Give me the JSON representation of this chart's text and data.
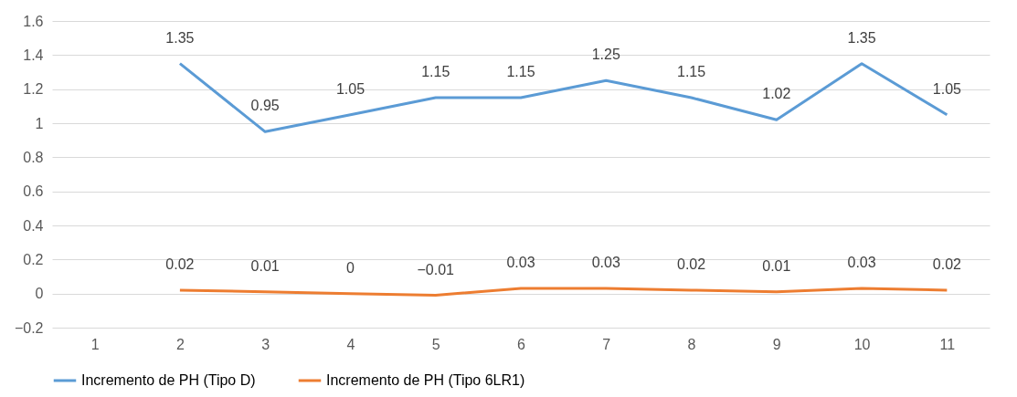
{
  "chart_data": {
    "type": "line",
    "categories": [
      "1",
      "2",
      "3",
      "4",
      "5",
      "6",
      "7",
      "8",
      "9",
      "10",
      "11"
    ],
    "series": [
      {
        "name": "Incremento de PH (Tipo D)",
        "color": "#5b9bd5",
        "values": [
          null,
          1.35,
          0.95,
          1.05,
          1.15,
          1.15,
          1.25,
          1.15,
          1.02,
          1.35,
          1.05
        ]
      },
      {
        "name": "Incremento de PH (Tipo 6LR1)",
        "color": "#ed7d31",
        "values": [
          null,
          0.02,
          0.01,
          0,
          -0.01,
          0.03,
          0.03,
          0.02,
          0.01,
          0.03,
          0.02
        ]
      }
    ],
    "ylim": [
      -0.2,
      1.6
    ],
    "yticks": [
      -0.2,
      0,
      0.2,
      0.4,
      0.6,
      0.8,
      1,
      1.2,
      1.4,
      1.6
    ],
    "grid": "y",
    "legend": "bottom",
    "data_labels": true,
    "marker": "none",
    "line_style": "solid"
  }
}
